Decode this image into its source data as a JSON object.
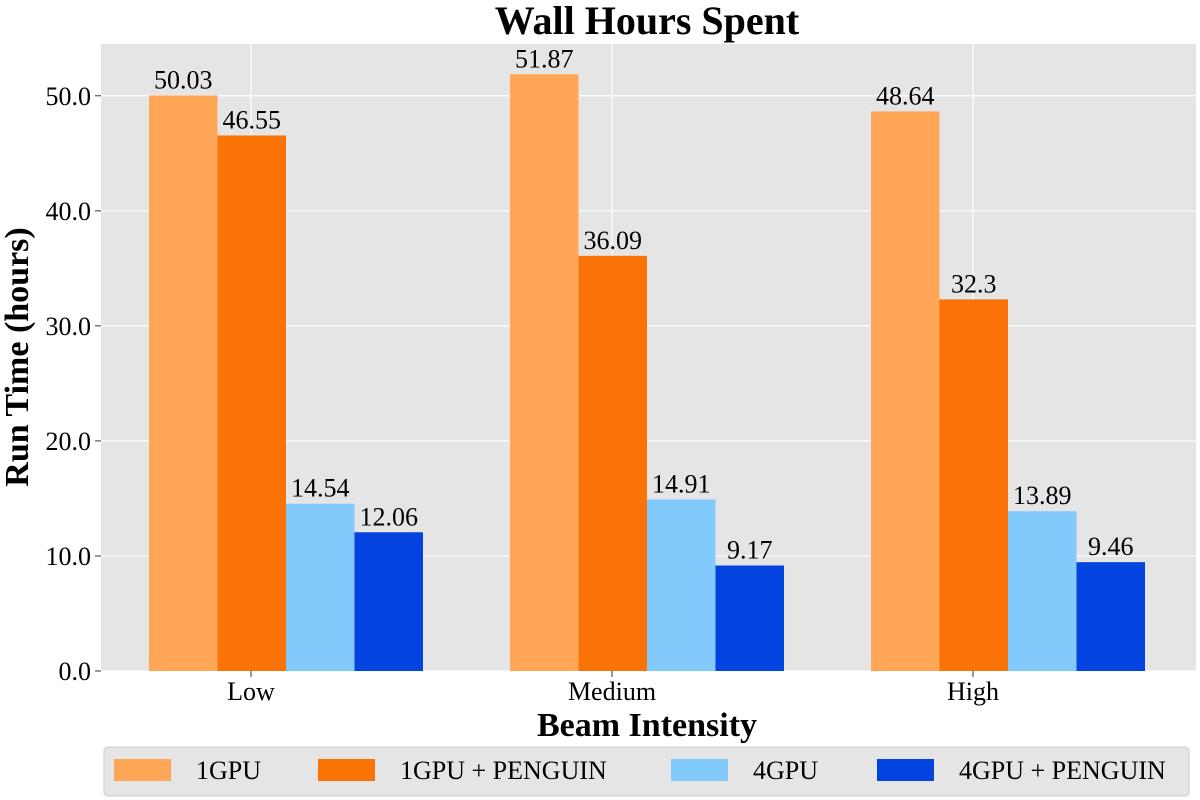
{
  "chart_data": {
    "type": "bar",
    "title": "Wall Hours Spent",
    "xlabel": "Beam Intensity",
    "ylabel": "Run Time (hours)",
    "categories": [
      "Low",
      "Medium",
      "High"
    ],
    "series": [
      {
        "name": "1GPU",
        "color": "#ffa756",
        "values": [
          50.03,
          51.87,
          48.64
        ],
        "labels": [
          "50.03",
          "51.87",
          "48.64"
        ]
      },
      {
        "name": "1GPU + PENGUIN",
        "color": "#f97306",
        "values": [
          46.55,
          36.09,
          32.3
        ],
        "labels": [
          "46.55",
          "36.09",
          "32.3"
        ]
      },
      {
        "name": "4GPU",
        "color": "#82cafc",
        "values": [
          14.54,
          14.91,
          13.89
        ],
        "labels": [
          "14.54",
          "14.91",
          "13.89"
        ]
      },
      {
        "name": "4GPU + PENGUIN",
        "color": "#0343df",
        "values": [
          12.06,
          9.17,
          9.46
        ],
        "labels": [
          "12.06",
          "9.17",
          "9.46"
        ]
      }
    ],
    "ylim": [
      0,
      54.5
    ],
    "yticks": [
      0,
      10,
      20,
      30,
      40,
      50
    ],
    "ytick_labels": [
      "0.0",
      "10.0",
      "20.0",
      "30.0",
      "40.0",
      "50.0"
    ],
    "grid": true,
    "legend_placement": "bottom",
    "plot_background": "#e5e5e5",
    "grid_color": "#ffffff"
  }
}
